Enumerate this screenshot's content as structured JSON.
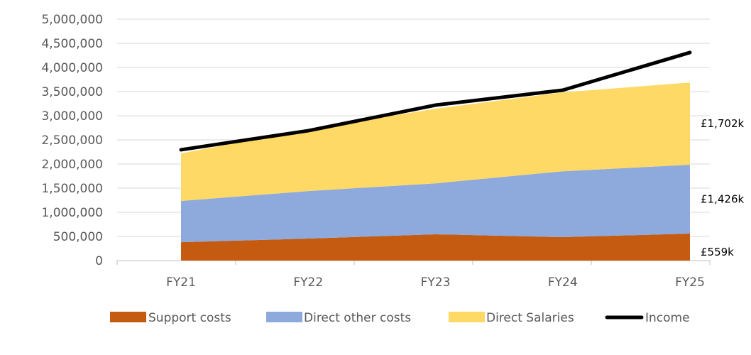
{
  "chart_data": {
    "type": "area",
    "stacked": true,
    "title": "",
    "xlabel": "",
    "ylabel": "",
    "categories": [
      "FY21",
      "FY22",
      "FY23",
      "FY24",
      "FY25"
    ],
    "ylim": [
      0,
      5000000
    ],
    "y_ticks": [
      0,
      500000,
      1000000,
      1500000,
      2000000,
      2500000,
      3000000,
      3500000,
      4000000,
      4500000,
      5000000
    ],
    "y_tick_labels": [
      "0",
      "500,000",
      "1,000,000",
      "1,500,000",
      "2,000,000",
      "2,500,000",
      "3,000,000",
      "3,500,000",
      "4,000,000",
      "4,500,000",
      "5,000,000"
    ],
    "grid": true,
    "legend_position": "bottom",
    "series": [
      {
        "name": "Support costs",
        "type": "area",
        "color": "#C55A11",
        "values": [
          380000,
          455000,
          545000,
          485000,
          559000
        ]
      },
      {
        "name": "Direct other costs",
        "type": "area",
        "color": "#8EA9DB",
        "values": [
          855000,
          985000,
          1055000,
          1365000,
          1426000
        ]
      },
      {
        "name": "Direct Salaries",
        "type": "area",
        "color": "#FFD966",
        "values": [
          985000,
          1280000,
          1545000,
          1635000,
          1702000
        ]
      },
      {
        "name": "Income",
        "type": "line",
        "color": "#000000",
        "values": [
          2295000,
          2690000,
          3220000,
          3530000,
          4310000
        ]
      }
    ],
    "annotations": [
      {
        "text": "£1,702k",
        "series": "Direct Salaries",
        "category": "FY25"
      },
      {
        "text": "£1,426k",
        "series": "Direct other costs",
        "category": "FY25"
      },
      {
        "text": "£559k",
        "series": "Support costs",
        "category": "FY25"
      }
    ]
  }
}
